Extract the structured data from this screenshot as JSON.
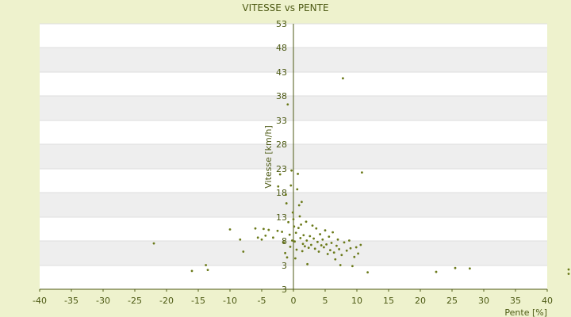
{
  "chart_data": {
    "type": "scatter",
    "title": "VITESSE vs PENTE",
    "xlabel": "Pente [%]",
    "ylabel": "Vitesse [km/h]",
    "xlim": [
      -40,
      40
    ],
    "ylim": [
      -2,
      53
    ],
    "x_ticks": [
      "-40",
      "-35",
      "-30",
      "-25",
      "-20",
      "-15",
      "-10",
      "-5",
      "0",
      "5",
      "10",
      "15",
      "20",
      "25",
      "30",
      "35",
      "40"
    ],
    "y_ticks": [
      "3",
      "3",
      "8",
      "13",
      "18",
      "23",
      "28",
      "33",
      "38",
      "43",
      "48",
      "53"
    ],
    "grid": true,
    "legend": "none",
    "colors": {
      "background": "#eef2cd",
      "plot_band_light": "#ffffff",
      "plot_band_dark": "#eeeeee",
      "axis": "#4d5a14",
      "marker": "#6b7a1a",
      "text": "#4d5a14"
    },
    "series": [
      {
        "points": [
          [
            -22,
            7.5
          ],
          [
            -16,
            1.8
          ],
          [
            -13.8,
            3
          ],
          [
            -13.5,
            2
          ],
          [
            -10,
            10.4
          ],
          [
            -8.4,
            8.3
          ],
          [
            -7.9,
            5.8
          ],
          [
            -6,
            10.6
          ],
          [
            -5.6,
            8.7
          ],
          [
            -5,
            8.3
          ],
          [
            -4.7,
            10.5
          ],
          [
            -4.4,
            9.1
          ],
          [
            -3.9,
            10.3
          ],
          [
            -3.2,
            8.7
          ],
          [
            -2.5,
            10.1
          ],
          [
            -2.4,
            19.3
          ],
          [
            -2.1,
            21.8
          ],
          [
            -1.8,
            9.9
          ],
          [
            -1.5,
            7.7
          ],
          [
            -1.3,
            5.5
          ],
          [
            -1.2,
            17.6
          ],
          [
            -1.1,
            15.8
          ],
          [
            -1,
            4.6
          ],
          [
            -0.9,
            36.3
          ],
          [
            -0.8,
            11.9
          ],
          [
            -0.6,
            9.3
          ],
          [
            -0.5,
            6.8
          ],
          [
            -0.4,
            19.5
          ],
          [
            -0.3,
            22.6
          ],
          [
            -0.2,
            8.1
          ],
          [
            -0.1,
            13.9
          ],
          [
            0,
            12.5
          ],
          [
            0.1,
            11
          ],
          [
            0.2,
            7.9
          ],
          [
            0.3,
            4.4
          ],
          [
            0.4,
            9.7
          ],
          [
            0.5,
            6.2
          ],
          [
            0.6,
            18.7
          ],
          [
            0.7,
            21.9
          ],
          [
            0.8,
            10.7
          ],
          [
            0.9,
            15.4
          ],
          [
            1,
            13.1
          ],
          [
            1.1,
            8.6
          ],
          [
            1.2,
            11.4
          ],
          [
            1.3,
            16.1
          ],
          [
            1.4,
            5.9
          ],
          [
            1.5,
            7.4
          ],
          [
            1.6,
            9.2
          ],
          [
            1.8,
            6.9
          ],
          [
            2,
            12
          ],
          [
            2.1,
            8.1
          ],
          [
            2.2,
            3.2
          ],
          [
            2.4,
            6.6
          ],
          [
            2.6,
            9
          ],
          [
            2.8,
            7.2
          ],
          [
            3,
            11.2
          ],
          [
            3.2,
            8.5
          ],
          [
            3.4,
            6.4
          ],
          [
            3.6,
            10.6
          ],
          [
            3.8,
            7.8
          ],
          [
            4,
            5.8
          ],
          [
            4.2,
            9.4
          ],
          [
            4.4,
            7.1
          ],
          [
            4.6,
            8.3
          ],
          [
            4.8,
            6.7
          ],
          [
            5,
            10.2
          ],
          [
            5.2,
            7.3
          ],
          [
            5.4,
            5.3
          ],
          [
            5.6,
            8.9
          ],
          [
            5.8,
            6.1
          ],
          [
            6,
            7.6
          ],
          [
            6.2,
            9.8
          ],
          [
            6.4,
            5.6
          ],
          [
            6.6,
            4.2
          ],
          [
            6.8,
            7
          ],
          [
            7,
            8.3
          ],
          [
            7.2,
            6.3
          ],
          [
            7.4,
            3
          ],
          [
            7.6,
            5.1
          ],
          [
            7.8,
            41.7
          ],
          [
            8,
            7.7
          ],
          [
            8.4,
            6
          ],
          [
            8.8,
            8.1
          ],
          [
            9,
            6.5
          ],
          [
            9.3,
            2.8
          ],
          [
            9.6,
            4.7
          ],
          [
            9.9,
            6.7
          ],
          [
            10.2,
            5.4
          ],
          [
            10.6,
            7.2
          ],
          [
            10.8,
            22.2
          ],
          [
            11.7,
            1.5
          ],
          [
            22.5,
            1.6
          ],
          [
            25.5,
            2.4
          ],
          [
            27.8,
            2.3
          ],
          [
            43.5,
            2.1
          ],
          [
            43.5,
            1.2
          ]
        ]
      }
    ]
  }
}
